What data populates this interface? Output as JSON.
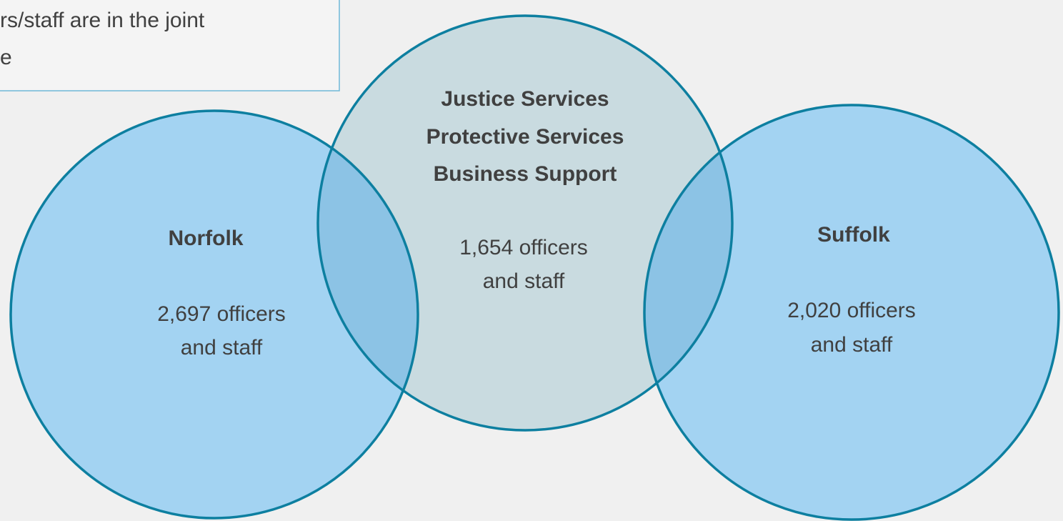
{
  "note_box": {
    "lines": [
      "rs/staff are in the joint",
      "e"
    ]
  },
  "circles": [
    {
      "title": [
        "Norfolk"
      ],
      "detail": [
        "2,697 officers",
        "and staff"
      ]
    },
    {
      "title": [
        "Justice Services",
        "Protective Services",
        "Business Support"
      ],
      "detail": [
        "1,654 officers",
        "and staff"
      ]
    },
    {
      "title": [
        "Suffolk"
      ],
      "detail": [
        "2,020 officers",
        "and staff"
      ]
    }
  ]
}
